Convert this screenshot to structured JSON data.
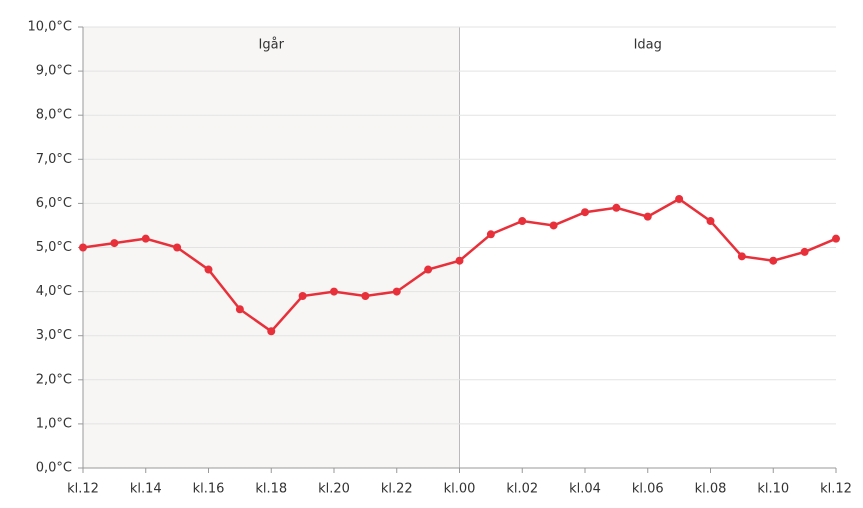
{
  "chart_data": {
    "type": "line",
    "categories": [
      "kl.12",
      null,
      "kl.14",
      null,
      "kl.16",
      null,
      "kl.18",
      null,
      "kl.20",
      null,
      "kl.22",
      null,
      "kl.00",
      null,
      "kl.02",
      null,
      "kl.04",
      null,
      "kl.06",
      null,
      "kl.08",
      null,
      "kl.10",
      null,
      "kl.12"
    ],
    "values": [
      5.0,
      5.1,
      5.2,
      5.0,
      4.5,
      3.6,
      3.1,
      3.9,
      4.0,
      3.9,
      4.0,
      4.5,
      4.7,
      5.3,
      5.6,
      5.5,
      5.8,
      5.9,
      5.7,
      6.1,
      5.6,
      4.8,
      4.7,
      4.9,
      5.2
    ],
    "color": "#e8303a",
    "ylim": [
      0,
      10
    ],
    "yticks": [
      {
        "value": 0,
        "label": "0,0°C"
      },
      {
        "value": 1,
        "label": "1,0°C"
      },
      {
        "value": 2,
        "label": "2,0°C"
      },
      {
        "value": 3,
        "label": "3,0°C"
      },
      {
        "value": 4,
        "label": "4,0°C"
      },
      {
        "value": 5,
        "label": "5,0°C"
      },
      {
        "value": 6,
        "label": "6,0°C"
      },
      {
        "value": 7,
        "label": "7,0°C"
      },
      {
        "value": 8,
        "label": "8,0°C"
      },
      {
        "value": 9,
        "label": "9,0°C"
      },
      {
        "value": 10,
        "label": "10,0°C"
      }
    ],
    "grid": true,
    "bands": [
      {
        "label": "Igår",
        "from": 0,
        "to": 12,
        "color": "#f7f6f4"
      },
      {
        "label": "Idag",
        "from": 12,
        "to": 24,
        "color": "#ffffff"
      }
    ]
  }
}
